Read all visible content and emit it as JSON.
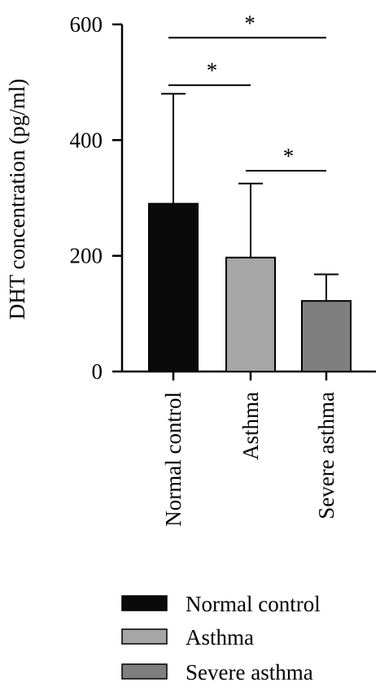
{
  "chart_data": {
    "type": "bar",
    "title": "",
    "xlabel": "",
    "ylabel": "DHT concentration (pg/ml)",
    "ylim": [
      0,
      600
    ],
    "yticks": [
      0,
      200,
      400,
      600
    ],
    "grid": false,
    "legend_position": "bottom",
    "categories": [
      "Normal control",
      "Asthma",
      "Severe asthma"
    ],
    "values": [
      290,
      197,
      122
    ],
    "error_upper": [
      480,
      325,
      168
    ],
    "colors": [
      "#0a0a0a",
      "#a6a6a6",
      "#7f7f7f"
    ],
    "significance": [
      {
        "from": "Normal control",
        "to": "Asthma",
        "label": "*",
        "y": 495
      },
      {
        "from": "Asthma",
        "to": "Severe asthma",
        "label": "*",
        "y": 347
      },
      {
        "from": "Normal control",
        "to": "Severe asthma",
        "label": "*",
        "y": 577
      }
    ],
    "legend": [
      {
        "label": "Normal control",
        "color": "#0a0a0a"
      },
      {
        "label": "Asthma",
        "color": "#a6a6a6"
      },
      {
        "label": "Severe asthma",
        "color": "#7f7f7f"
      }
    ]
  }
}
